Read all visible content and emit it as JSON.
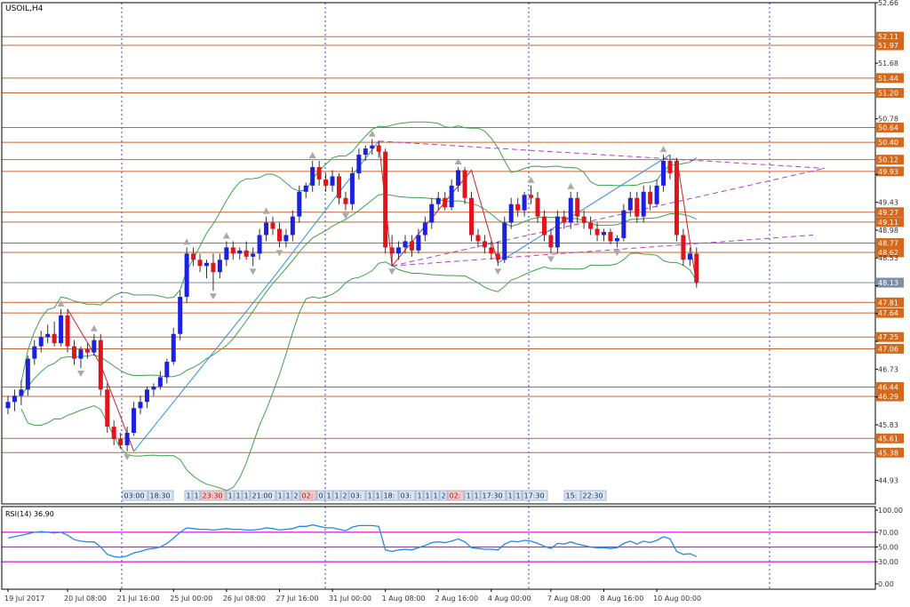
{
  "chart_data": {
    "type": "candlestick",
    "symbol_label": "USOIL,H4",
    "price_axis": {
      "ylim": [
        44.55,
        52.66
      ],
      "ticks": [
        "52.66",
        "51.68",
        "50.78",
        "49.88",
        "49.43",
        "48.98",
        "48.53",
        "48.08",
        "47.63",
        "47.18",
        "46.73",
        "46.28",
        "45.83",
        "44.93"
      ]
    },
    "horizontal_levels": [
      {
        "label": "52.11",
        "value": 52.11
      },
      {
        "label": "51.97",
        "value": 51.97
      },
      {
        "label": "51.44",
        "value": 51.44
      },
      {
        "label": "51.20",
        "value": 51.2
      },
      {
        "label": "50.64",
        "value": 50.64
      },
      {
        "label": "50.40",
        "value": 50.4
      },
      {
        "label": "50.12",
        "value": 50.12
      },
      {
        "label": "49.93",
        "value": 49.93
      },
      {
        "label": "49.27",
        "value": 49.27
      },
      {
        "label": "49.11",
        "value": 49.11
      },
      {
        "label": "48.77",
        "value": 48.77
      },
      {
        "label": "48.62",
        "value": 48.62
      },
      {
        "label": "47.81",
        "value": 47.81
      },
      {
        "label": "47.64",
        "value": 47.64
      },
      {
        "label": "47.25",
        "value": 47.25
      },
      {
        "label": "47.06",
        "value": 47.06
      },
      {
        "label": "46.44",
        "value": 46.44
      },
      {
        "label": "46.29",
        "value": 46.29
      },
      {
        "label": "45.61",
        "value": 45.61
      },
      {
        "label": "45.38",
        "value": 45.38
      }
    ],
    "current_price": {
      "label": "48.13",
      "value": 48.13
    },
    "candles": [
      {
        "o": 46.1,
        "h": 46.3,
        "l": 46.0,
        "c": 46.2
      },
      {
        "o": 46.2,
        "h": 46.4,
        "l": 46.05,
        "c": 46.3
      },
      {
        "o": 46.3,
        "h": 46.55,
        "l": 46.15,
        "c": 46.4
      },
      {
        "o": 46.4,
        "h": 46.95,
        "l": 46.3,
        "c": 46.9
      },
      {
        "o": 46.9,
        "h": 47.2,
        "l": 46.8,
        "c": 47.1
      },
      {
        "o": 47.1,
        "h": 47.35,
        "l": 47.0,
        "c": 47.25
      },
      {
        "o": 47.25,
        "h": 47.45,
        "l": 47.15,
        "c": 47.3
      },
      {
        "o": 47.3,
        "h": 47.5,
        "l": 47.1,
        "c": 47.15
      },
      {
        "o": 47.15,
        "h": 47.7,
        "l": 47.1,
        "c": 47.6
      },
      {
        "o": 47.6,
        "h": 47.7,
        "l": 47.0,
        "c": 47.1
      },
      {
        "o": 47.1,
        "h": 47.2,
        "l": 46.8,
        "c": 46.9
      },
      {
        "o": 46.9,
        "h": 47.1,
        "l": 46.75,
        "c": 47.05
      },
      {
        "o": 47.05,
        "h": 47.15,
        "l": 46.9,
        "c": 47.0
      },
      {
        "o": 47.0,
        "h": 47.3,
        "l": 46.95,
        "c": 47.2
      },
      {
        "o": 47.2,
        "h": 47.3,
        "l": 46.3,
        "c": 46.4
      },
      {
        "o": 46.4,
        "h": 46.5,
        "l": 45.7,
        "c": 45.8
      },
      {
        "o": 45.8,
        "h": 45.9,
        "l": 45.5,
        "c": 45.6
      },
      {
        "o": 45.6,
        "h": 45.7,
        "l": 45.45,
        "c": 45.5
      },
      {
        "o": 45.5,
        "h": 45.8,
        "l": 45.4,
        "c": 45.7
      },
      {
        "o": 45.7,
        "h": 46.2,
        "l": 45.65,
        "c": 46.1
      },
      {
        "o": 46.1,
        "h": 46.3,
        "l": 46.0,
        "c": 46.2
      },
      {
        "o": 46.2,
        "h": 46.45,
        "l": 46.1,
        "c": 46.4
      },
      {
        "o": 46.4,
        "h": 46.5,
        "l": 46.3,
        "c": 46.45
      },
      {
        "o": 46.45,
        "h": 46.7,
        "l": 46.4,
        "c": 46.6
      },
      {
        "o": 46.6,
        "h": 46.9,
        "l": 46.5,
        "c": 46.85
      },
      {
        "o": 46.85,
        "h": 47.4,
        "l": 46.8,
        "c": 47.3
      },
      {
        "o": 47.3,
        "h": 48.0,
        "l": 47.2,
        "c": 47.9
      },
      {
        "o": 47.9,
        "h": 48.7,
        "l": 47.8,
        "c": 48.6
      },
      {
        "o": 48.6,
        "h": 48.7,
        "l": 48.4,
        "c": 48.5
      },
      {
        "o": 48.5,
        "h": 48.6,
        "l": 48.3,
        "c": 48.4
      },
      {
        "o": 48.4,
        "h": 48.5,
        "l": 48.2,
        "c": 48.45
      },
      {
        "o": 48.45,
        "h": 48.6,
        "l": 48.0,
        "c": 48.3
      },
      {
        "o": 48.3,
        "h": 48.6,
        "l": 48.2,
        "c": 48.5
      },
      {
        "o": 48.5,
        "h": 48.8,
        "l": 48.4,
        "c": 48.7
      },
      {
        "o": 48.7,
        "h": 48.8,
        "l": 48.5,
        "c": 48.6
      },
      {
        "o": 48.6,
        "h": 48.7,
        "l": 48.5,
        "c": 48.65
      },
      {
        "o": 48.65,
        "h": 48.8,
        "l": 48.5,
        "c": 48.55
      },
      {
        "o": 48.55,
        "h": 48.7,
        "l": 48.4,
        "c": 48.6
      },
      {
        "o": 48.6,
        "h": 49.0,
        "l": 48.5,
        "c": 48.9
      },
      {
        "o": 48.9,
        "h": 49.2,
        "l": 48.8,
        "c": 49.1
      },
      {
        "o": 49.1,
        "h": 49.2,
        "l": 48.9,
        "c": 49.0
      },
      {
        "o": 49.0,
        "h": 49.1,
        "l": 48.7,
        "c": 48.8
      },
      {
        "o": 48.8,
        "h": 49.0,
        "l": 48.7,
        "c": 48.9
      },
      {
        "o": 48.9,
        "h": 49.3,
        "l": 48.8,
        "c": 49.2
      },
      {
        "o": 49.2,
        "h": 49.7,
        "l": 49.1,
        "c": 49.6
      },
      {
        "o": 49.6,
        "h": 49.75,
        "l": 49.5,
        "c": 49.7
      },
      {
        "o": 49.7,
        "h": 50.1,
        "l": 49.6,
        "c": 50.0
      },
      {
        "o": 50.0,
        "h": 50.1,
        "l": 49.7,
        "c": 49.8
      },
      {
        "o": 49.8,
        "h": 49.9,
        "l": 49.6,
        "c": 49.7
      },
      {
        "o": 49.7,
        "h": 49.95,
        "l": 49.6,
        "c": 49.85
      },
      {
        "o": 49.85,
        "h": 49.9,
        "l": 49.4,
        "c": 49.5
      },
      {
        "o": 49.5,
        "h": 49.6,
        "l": 49.3,
        "c": 49.4
      },
      {
        "o": 49.4,
        "h": 50.0,
        "l": 49.3,
        "c": 49.9
      },
      {
        "o": 49.9,
        "h": 50.3,
        "l": 49.8,
        "c": 50.2
      },
      {
        "o": 50.2,
        "h": 50.35,
        "l": 50.1,
        "c": 50.3
      },
      {
        "o": 50.3,
        "h": 50.45,
        "l": 50.2,
        "c": 50.35
      },
      {
        "o": 50.35,
        "h": 50.42,
        "l": 50.15,
        "c": 50.25
      },
      {
        "o": 50.25,
        "h": 50.3,
        "l": 48.6,
        "c": 48.7
      },
      {
        "o": 48.7,
        "h": 48.9,
        "l": 48.4,
        "c": 48.6
      },
      {
        "o": 48.6,
        "h": 48.8,
        "l": 48.5,
        "c": 48.7
      },
      {
        "o": 48.7,
        "h": 48.9,
        "l": 48.6,
        "c": 48.8
      },
      {
        "o": 48.8,
        "h": 48.9,
        "l": 48.55,
        "c": 48.65
      },
      {
        "o": 48.65,
        "h": 49.0,
        "l": 48.6,
        "c": 48.9
      },
      {
        "o": 48.9,
        "h": 49.2,
        "l": 48.8,
        "c": 49.1
      },
      {
        "o": 49.1,
        "h": 49.5,
        "l": 49.0,
        "c": 49.4
      },
      {
        "o": 49.4,
        "h": 49.6,
        "l": 49.3,
        "c": 49.5
      },
      {
        "o": 49.5,
        "h": 49.6,
        "l": 49.3,
        "c": 49.35
      },
      {
        "o": 49.35,
        "h": 49.8,
        "l": 49.3,
        "c": 49.7
      },
      {
        "o": 49.7,
        "h": 50.0,
        "l": 49.6,
        "c": 49.95
      },
      {
        "o": 49.95,
        "h": 50.0,
        "l": 49.4,
        "c": 49.5
      },
      {
        "o": 49.5,
        "h": 49.6,
        "l": 48.8,
        "c": 48.9
      },
      {
        "o": 48.9,
        "h": 49.0,
        "l": 48.7,
        "c": 48.8
      },
      {
        "o": 48.8,
        "h": 48.9,
        "l": 48.6,
        "c": 48.7
      },
      {
        "o": 48.7,
        "h": 48.8,
        "l": 48.5,
        "c": 48.6
      },
      {
        "o": 48.6,
        "h": 48.8,
        "l": 48.4,
        "c": 48.5
      },
      {
        "o": 48.5,
        "h": 49.2,
        "l": 48.45,
        "c": 49.1
      },
      {
        "o": 49.1,
        "h": 49.5,
        "l": 49.0,
        "c": 49.4
      },
      {
        "o": 49.4,
        "h": 49.5,
        "l": 49.2,
        "c": 49.3
      },
      {
        "o": 49.3,
        "h": 49.6,
        "l": 49.2,
        "c": 49.55
      },
      {
        "o": 49.55,
        "h": 49.7,
        "l": 49.4,
        "c": 49.5
      },
      {
        "o": 49.5,
        "h": 49.6,
        "l": 49.1,
        "c": 49.2
      },
      {
        "o": 49.2,
        "h": 49.3,
        "l": 48.8,
        "c": 48.9
      },
      {
        "o": 48.9,
        "h": 49.0,
        "l": 48.6,
        "c": 48.7
      },
      {
        "o": 48.7,
        "h": 49.3,
        "l": 48.6,
        "c": 49.2
      },
      {
        "o": 49.2,
        "h": 49.3,
        "l": 49.0,
        "c": 49.1
      },
      {
        "o": 49.1,
        "h": 49.6,
        "l": 49.0,
        "c": 49.5
      },
      {
        "o": 49.5,
        "h": 49.6,
        "l": 49.1,
        "c": 49.2
      },
      {
        "o": 49.2,
        "h": 49.3,
        "l": 49.0,
        "c": 49.1
      },
      {
        "o": 49.1,
        "h": 49.2,
        "l": 48.9,
        "c": 49.0
      },
      {
        "o": 49.0,
        "h": 49.1,
        "l": 48.8,
        "c": 48.9
      },
      {
        "o": 48.9,
        "h": 49.0,
        "l": 48.8,
        "c": 48.95
      },
      {
        "o": 48.95,
        "h": 49.0,
        "l": 48.75,
        "c": 48.8
      },
      {
        "o": 48.8,
        "h": 48.9,
        "l": 48.7,
        "c": 48.85
      },
      {
        "o": 48.85,
        "h": 49.4,
        "l": 48.8,
        "c": 49.3
      },
      {
        "o": 49.3,
        "h": 49.6,
        "l": 49.2,
        "c": 49.5
      },
      {
        "o": 49.5,
        "h": 49.6,
        "l": 49.1,
        "c": 49.2
      },
      {
        "o": 49.2,
        "h": 49.7,
        "l": 49.1,
        "c": 49.6
      },
      {
        "o": 49.6,
        "h": 49.7,
        "l": 49.3,
        "c": 49.4
      },
      {
        "o": 49.4,
        "h": 49.8,
        "l": 49.35,
        "c": 49.7
      },
      {
        "o": 49.7,
        "h": 50.2,
        "l": 49.6,
        "c": 50.1
      },
      {
        "o": 50.1,
        "h": 50.2,
        "l": 49.8,
        "c": 49.9
      },
      {
        "o": 50.1,
        "h": 50.15,
        "l": 48.8,
        "c": 48.9
      },
      {
        "o": 48.9,
        "h": 49.0,
        "l": 48.4,
        "c": 48.5
      },
      {
        "o": 48.5,
        "h": 48.7,
        "l": 48.4,
        "c": 48.6
      },
      {
        "o": 48.6,
        "h": 48.7,
        "l": 48.05,
        "c": 48.13
      }
    ],
    "time_axis": [
      {
        "label": "19 Jul 2017",
        "i": 0
      },
      {
        "label": "20 Jul 08:00",
        "i": 9
      },
      {
        "label": "21 Jul 16:00",
        "i": 17
      },
      {
        "label": "25 Jul 00:00",
        "i": 25
      },
      {
        "label": "26 Jul 08:00",
        "i": 33
      },
      {
        "label": "27 Jul 16:00",
        "i": 41
      },
      {
        "label": "31 Jul 00:00",
        "i": 49
      },
      {
        "label": "1 Aug 08:00",
        "i": 57
      },
      {
        "label": "2 Aug 16:00",
        "i": 65
      },
      {
        "label": "4 Aug 00:00",
        "i": 73
      },
      {
        "label": "7 Aug 08:00",
        "i": 82
      },
      {
        "label": "8 Aug 16:00",
        "i": 90
      },
      {
        "label": "10 Aug 00:00",
        "i": 98
      }
    ],
    "event_markers": [
      "03:00",
      "18:30",
      "1",
      "1",
      "23:30",
      "1",
      "1",
      "1",
      "21:00",
      "1",
      "1",
      "2",
      "02:",
      "0",
      "1",
      "1",
      "2",
      "03:",
      "1",
      "1",
      "18:",
      "03:",
      "1",
      "1",
      "1",
      "2",
      "02:",
      "1",
      "1",
      "17:30",
      "1",
      "1",
      "17:30",
      "15:",
      "22:30"
    ],
    "rsi": {
      "label": "RSI(14) 36.90",
      "ylim": [
        0,
        100
      ],
      "ticks": [
        "100.00",
        "70.00",
        "50.00",
        "30.00",
        "0.00"
      ],
      "levels": [
        70,
        50,
        30
      ],
      "values": [
        62,
        64,
        66,
        68,
        70,
        71,
        70,
        69,
        70,
        66,
        60,
        58,
        57,
        57,
        50,
        40,
        37,
        36,
        38,
        42,
        44,
        47,
        48,
        50,
        55,
        62,
        70,
        76,
        75,
        74,
        74,
        73,
        74,
        75,
        74,
        74,
        73,
        73,
        74,
        76,
        75,
        73,
        74,
        75,
        78,
        78,
        80,
        78,
        76,
        76,
        74,
        72,
        77,
        79,
        79,
        79,
        78,
        46,
        44,
        46,
        47,
        46,
        49,
        52,
        56,
        57,
        56,
        58,
        61,
        57,
        49,
        48,
        47,
        47,
        46,
        54,
        58,
        57,
        59,
        58,
        55,
        51,
        48,
        55,
        54,
        57,
        54,
        52,
        50,
        49,
        49,
        48,
        49,
        55,
        58,
        54,
        58,
        56,
        59,
        64,
        61,
        44,
        40,
        41,
        37
      ]
    }
  }
}
